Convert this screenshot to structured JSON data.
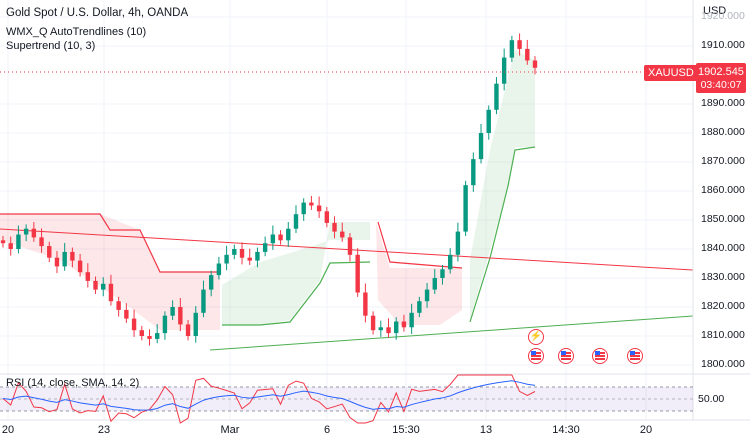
{
  "legend": {
    "title": "Gold Spot / U.S. Dollar, 4h, OANDA",
    "indicator_1": "WMX_Q AutoTrendlines (10)",
    "indicator_2": "Supertrend (10, 3)"
  },
  "rsi": {
    "legend": "RSI (14, close, SMA, 14, 2)",
    "axis_value": "50.00"
  },
  "price_axis": {
    "unit": "USD",
    "labels": [
      "1920.000",
      "1910.000",
      "1890.000",
      "1880.000",
      "1870.000",
      "1860.000",
      "1850.000",
      "1840.000",
      "1830.000",
      "1820.000",
      "1810.000",
      "1800.000"
    ]
  },
  "time_axis": {
    "labels": [
      "20",
      "23",
      "Mar",
      "6",
      "15:30",
      "13",
      "14:30",
      "20"
    ]
  },
  "last_price": {
    "symbol_tag": "XAUUSD",
    "price": "1902.545",
    "countdown": "03:40:07"
  },
  "events": {
    "lightning": "⚡",
    "flags": [
      "us-flag",
      "us-flag",
      "us-flag",
      "us-flag",
      "us-flag"
    ]
  },
  "colors": {
    "up": "#089981",
    "down": "#f23645",
    "supertrend_up": "#4caf50",
    "supertrend_down": "#f23645",
    "rsi": "#7e57c2"
  },
  "chart_data": {
    "type": "candlestick",
    "symbol": "XAUUSD",
    "timeframe": "4h",
    "ylim": [
      1800,
      1922
    ],
    "last": 1902.545,
    "series_close": [
      1842,
      1840,
      1845,
      1847,
      1844,
      1841,
      1837,
      1834,
      1839,
      1836,
      1832,
      1829,
      1826,
      1828,
      1822,
      1819,
      1816,
      1812,
      1810,
      1809,
      1811,
      1817,
      1820,
      1814,
      1810,
      1818,
      1826,
      1831,
      1835,
      1838,
      1840,
      1837,
      1836,
      1839,
      1842,
      1845,
      1843,
      1847,
      1852,
      1856,
      1855,
      1853,
      1849,
      1846,
      1844,
      1838,
      1825,
      1817,
      1812,
      1813,
      1811,
      1815,
      1813,
      1818,
      1822,
      1826,
      1830,
      1833,
      1838,
      1846,
      1862,
      1871,
      1880,
      1888,
      1897,
      1906,
      1912,
      1909,
      1905,
      1902.5
    ]
  }
}
